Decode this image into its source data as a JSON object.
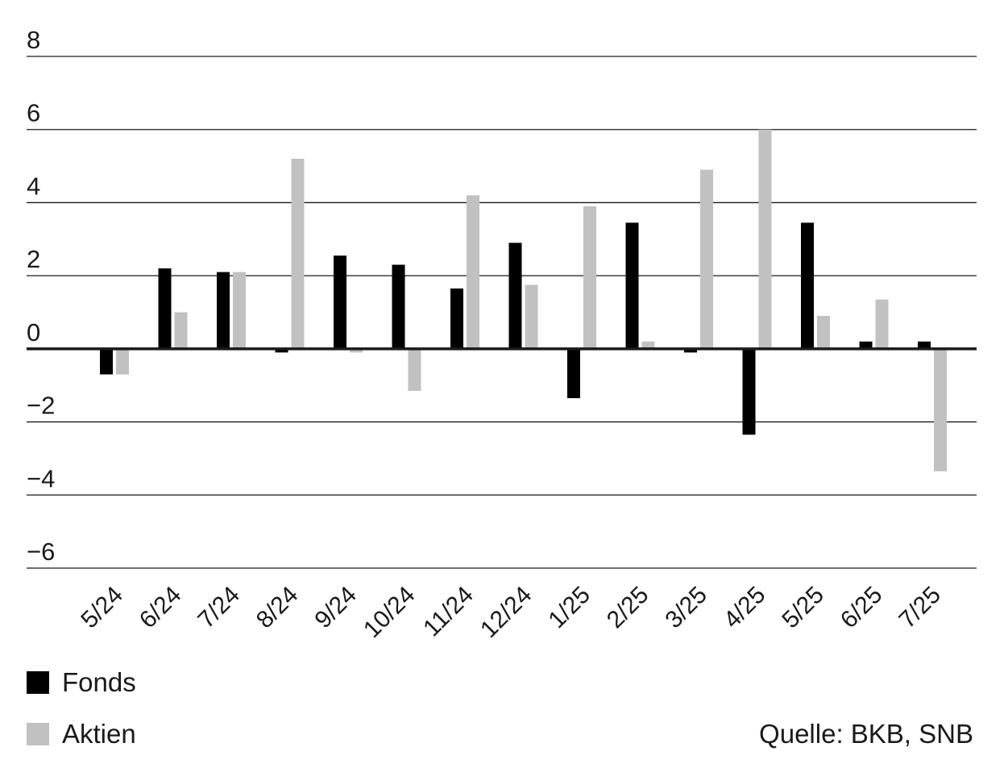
{
  "chart_data": {
    "type": "bar",
    "categories": [
      "5/24",
      "6/24",
      "7/24",
      "8/24",
      "9/24",
      "10/24",
      "11/24",
      "12/24",
      "1/25",
      "2/25",
      "3/25",
      "4/25",
      "5/25",
      "6/25",
      "7/25"
    ],
    "series": [
      {
        "name": "Fonds",
        "color": "#000000",
        "values": [
          -0.7,
          2.2,
          2.1,
          -0.1,
          2.55,
          2.3,
          1.65,
          2.9,
          -1.35,
          3.45,
          -0.1,
          -2.35,
          3.45,
          0.2,
          0.2
        ]
      },
      {
        "name": "Aktien",
        "color": "#c0c1c0",
        "values": [
          -0.7,
          1.0,
          2.1,
          5.2,
          -0.1,
          -1.15,
          4.2,
          1.75,
          3.9,
          0.2,
          4.9,
          6.0,
          0.9,
          1.35,
          -3.35
        ]
      }
    ],
    "ylim": [
      -6,
      8
    ],
    "yticks": [
      "8",
      "6",
      "4",
      "2",
      "0",
      "−2",
      "−4",
      "−6"
    ],
    "ytick_values": [
      8,
      6,
      4,
      2,
      0,
      -2,
      -4,
      -6
    ],
    "grid": true,
    "legend_position": "bottom-left",
    "source": "Quelle: BKB, SNB"
  }
}
